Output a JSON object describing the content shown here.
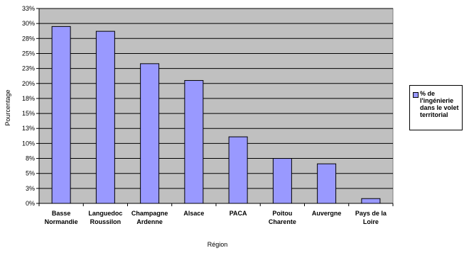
{
  "chart_data": {
    "type": "bar",
    "xlabel": "Région",
    "ylabel": "Pourcentage",
    "categories": [
      [
        "Basse",
        "Normandie"
      ],
      [
        "Languedoc",
        "Roussilon"
      ],
      [
        "Champagne",
        "Ardenne"
      ],
      [
        "Alsace"
      ],
      [
        "PACA"
      ],
      [
        "Poitou",
        "Charente"
      ],
      [
        "Auvergne"
      ],
      [
        "Pays de la",
        "Loire"
      ]
    ],
    "series": [
      {
        "name": "% de l'ingénierie dans le volet territorial",
        "values": [
          29.5,
          28.7,
          23.3,
          20.5,
          11.1,
          7.5,
          6.6,
          0.8
        ],
        "color": "#9999ff"
      }
    ],
    "ylim": [
      0,
      32.5
    ],
    "ytick_values": [
      0,
      2.5,
      5,
      7.5,
      10,
      12.5,
      15,
      17.5,
      20,
      22.5,
      25,
      27.5,
      30,
      32.5
    ],
    "ytick_labels": [
      "0%",
      "3%",
      "5%",
      "8%",
      "10%",
      "13%",
      "15%",
      "18%",
      "20%",
      "23%",
      "25%",
      "28%",
      "30%",
      "33%"
    ],
    "grid": true,
    "plot_background": "#c0c0c0",
    "legend_position": "right"
  }
}
